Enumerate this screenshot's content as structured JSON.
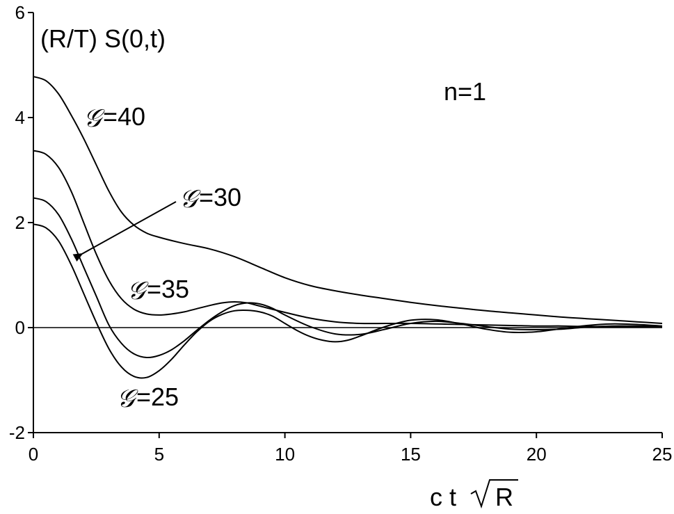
{
  "chart_data": {
    "type": "line",
    "title": "",
    "ylabel": "(R/T) S(0,t)",
    "xlabel_parts": [
      "c t",
      "R"
    ],
    "xlim": [
      0,
      25
    ],
    "ylim": [
      -2,
      6
    ],
    "x_ticks": [
      "0",
      "5",
      "10",
      "15",
      "20",
      "25"
    ],
    "y_ticks": [
      "-2",
      "0",
      "2",
      "4",
      "6"
    ],
    "grid": false,
    "legend": "none",
    "zero_line": true,
    "annotations": {
      "n_label": "n=1",
      "g_symbol": "𝒢",
      "g40": "=40",
      "g30": "=30",
      "g35": "=35",
      "g25": "=25"
    },
    "series": [
      {
        "name": "G=40",
        "x": [
          0,
          0.5,
          1,
          1.5,
          2,
          2.5,
          3,
          3.5,
          4,
          4.5,
          5,
          6,
          7,
          8,
          9,
          10,
          11,
          12,
          13,
          14,
          15,
          16,
          17,
          18,
          19,
          20,
          21,
          22,
          23,
          24,
          25
        ],
        "y": [
          4.78,
          4.7,
          4.45,
          4.05,
          3.6,
          3.1,
          2.6,
          2.2,
          1.95,
          1.8,
          1.72,
          1.6,
          1.5,
          1.35,
          1.15,
          0.95,
          0.8,
          0.7,
          0.62,
          0.55,
          0.48,
          0.42,
          0.37,
          0.32,
          0.28,
          0.24,
          0.2,
          0.17,
          0.14,
          0.11,
          0.08
        ]
      },
      {
        "name": "G=35",
        "x": [
          0,
          0.5,
          1,
          1.5,
          2,
          2.5,
          3,
          3.5,
          4,
          4.5,
          5,
          5.5,
          6,
          6.5,
          7,
          7.5,
          8,
          8.5,
          9,
          10,
          11,
          12,
          13,
          14,
          15,
          16,
          17,
          18,
          19,
          20,
          21,
          22,
          23,
          24,
          25
        ],
        "y": [
          3.37,
          3.3,
          3.05,
          2.6,
          2.0,
          1.4,
          0.9,
          0.55,
          0.35,
          0.26,
          0.24,
          0.26,
          0.3,
          0.36,
          0.42,
          0.47,
          0.49,
          0.47,
          0.41,
          0.29,
          0.18,
          0.11,
          0.08,
          0.08,
          0.08,
          0.07,
          0.06,
          0.05,
          0.04,
          0.03,
          0.03,
          0.02,
          0.02,
          0.01,
          0.01
        ]
      },
      {
        "name": "G=30",
        "x": [
          0,
          0.5,
          1,
          1.5,
          2,
          2.5,
          3,
          3.5,
          4,
          4.5,
          5,
          5.5,
          6,
          6.5,
          7,
          7.5,
          8,
          8.5,
          9,
          9.5,
          10,
          11,
          12,
          13,
          14,
          15,
          16,
          17,
          18,
          19,
          20,
          21,
          22,
          23,
          24,
          25
        ],
        "y": [
          2.47,
          2.4,
          2.15,
          1.7,
          1.15,
          0.6,
          0.05,
          -0.3,
          -0.5,
          -0.57,
          -0.53,
          -0.42,
          -0.25,
          -0.05,
          0.14,
          0.3,
          0.42,
          0.47,
          0.45,
          0.37,
          0.24,
          0.02,
          -0.12,
          -0.13,
          -0.03,
          0.08,
          0.12,
          0.08,
          0.02,
          -0.03,
          -0.04,
          -0.03,
          0.01,
          0.03,
          0.03,
          0.02
        ]
      },
      {
        "name": "G=25",
        "x": [
          0,
          0.5,
          1,
          1.5,
          2,
          2.5,
          3,
          3.5,
          4,
          4.5,
          5,
          5.5,
          6,
          6.5,
          7,
          7.5,
          8,
          8.5,
          9,
          9.5,
          10,
          10.5,
          11,
          11.5,
          12,
          12.5,
          13,
          14,
          15,
          16,
          17,
          18,
          19,
          20,
          21,
          22,
          23,
          24,
          25
        ],
        "y": [
          1.97,
          1.9,
          1.65,
          1.2,
          0.65,
          0.1,
          -0.4,
          -0.75,
          -0.93,
          -0.95,
          -0.82,
          -0.6,
          -0.33,
          -0.08,
          0.12,
          0.25,
          0.32,
          0.33,
          0.3,
          0.22,
          0.08,
          -0.06,
          -0.17,
          -0.24,
          -0.27,
          -0.24,
          -0.16,
          0.02,
          0.14,
          0.15,
          0.07,
          -0.03,
          -0.09,
          -0.08,
          -0.02,
          0.04,
          0.07,
          0.06,
          0.03
        ]
      }
    ]
  }
}
